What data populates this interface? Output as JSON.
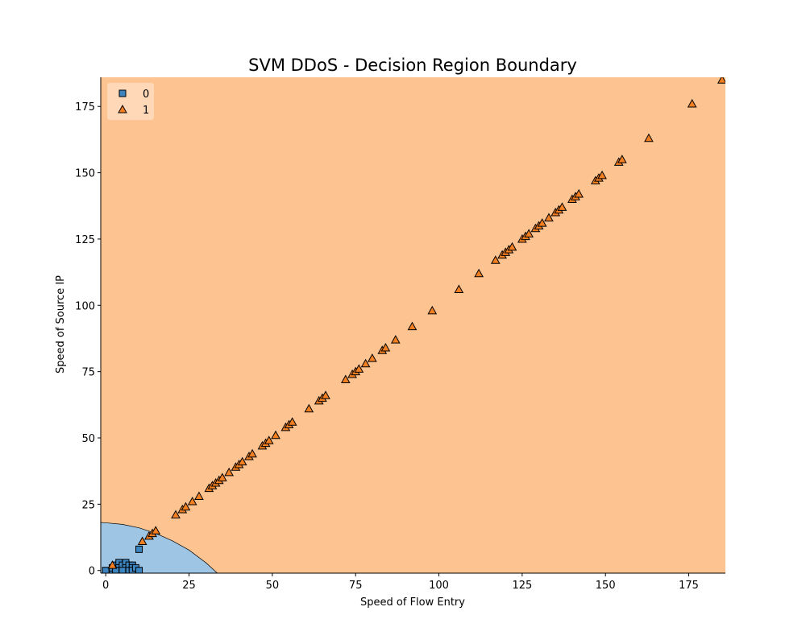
{
  "chart_data": {
    "type": "scatter",
    "title": "SVM DDoS - Decision Region Boundary",
    "xlabel": "Speed of Flow Entry",
    "ylabel": "Speed of Source IP",
    "xlim": [
      -1.5,
      186
    ],
    "ylim": [
      -1,
      186
    ],
    "xticks": [
      0,
      25,
      50,
      75,
      100,
      125,
      150,
      175
    ],
    "yticks": [
      0,
      25,
      50,
      75,
      100,
      125,
      150,
      175
    ],
    "legend_position": "top-left",
    "grid": false,
    "region_colors": {
      "0": "#9ec5e3",
      "1": "#fdc491"
    },
    "boundary_curve": [
      [
        -1.5,
        18.1
      ],
      [
        0,
        18.0
      ],
      [
        5,
        17.4
      ],
      [
        10,
        16.1
      ],
      [
        15,
        14.0
      ],
      [
        20,
        11.2
      ],
      [
        25,
        7.7
      ],
      [
        30,
        3.0
      ],
      [
        33.5,
        -1
      ]
    ],
    "series": [
      {
        "name": "0",
        "marker": "square",
        "color": "#3b84bf",
        "points": [
          [
            0,
            0
          ],
          [
            2,
            0
          ],
          [
            2,
            1
          ],
          [
            3,
            2
          ],
          [
            4,
            3
          ],
          [
            4,
            1
          ],
          [
            4,
            0
          ],
          [
            5,
            2
          ],
          [
            6,
            3
          ],
          [
            6,
            1
          ],
          [
            7,
            2
          ],
          [
            7,
            0
          ],
          [
            8,
            2
          ],
          [
            8,
            1
          ],
          [
            8,
            0
          ],
          [
            9,
            1
          ],
          [
            10,
            8
          ],
          [
            10,
            0
          ],
          [
            3,
            0
          ],
          [
            5,
            0
          ]
        ]
      },
      {
        "name": "1",
        "marker": "triangle",
        "color": "#f47f20",
        "points": [
          [
            2,
            2
          ],
          [
            11,
            11
          ],
          [
            13,
            13
          ],
          [
            14,
            14
          ],
          [
            15,
            15
          ],
          [
            21,
            21
          ],
          [
            23,
            23
          ],
          [
            24,
            24
          ],
          [
            26,
            26
          ],
          [
            28,
            28
          ],
          [
            31,
            31
          ],
          [
            32,
            32
          ],
          [
            33,
            33
          ],
          [
            34,
            34
          ],
          [
            35,
            35
          ],
          [
            37,
            37
          ],
          [
            39,
            39
          ],
          [
            40,
            40
          ],
          [
            41,
            41
          ],
          [
            43,
            43
          ],
          [
            44,
            44
          ],
          [
            47,
            47
          ],
          [
            48,
            48
          ],
          [
            49,
            49
          ],
          [
            51,
            51
          ],
          [
            54,
            54
          ],
          [
            55,
            55
          ],
          [
            56,
            56
          ],
          [
            61,
            61
          ],
          [
            64,
            64
          ],
          [
            65,
            65
          ],
          [
            66,
            66
          ],
          [
            72,
            72
          ],
          [
            74,
            74
          ],
          [
            75,
            75
          ],
          [
            76,
            76
          ],
          [
            78,
            78
          ],
          [
            80,
            80
          ],
          [
            83,
            83
          ],
          [
            84,
            84
          ],
          [
            87,
            87
          ],
          [
            92,
            92
          ],
          [
            98,
            98
          ],
          [
            106,
            106
          ],
          [
            112,
            112
          ],
          [
            117,
            117
          ],
          [
            119,
            119
          ],
          [
            120,
            120
          ],
          [
            121,
            121
          ],
          [
            122,
            122
          ],
          [
            125,
            125
          ],
          [
            126,
            126
          ],
          [
            127,
            127
          ],
          [
            129,
            129
          ],
          [
            130,
            130
          ],
          [
            131,
            131
          ],
          [
            133,
            133
          ],
          [
            135,
            135
          ],
          [
            136,
            136
          ],
          [
            137,
            137
          ],
          [
            140,
            140
          ],
          [
            141,
            141
          ],
          [
            142,
            142
          ],
          [
            147,
            147
          ],
          [
            148,
            148
          ],
          [
            149,
            149
          ],
          [
            154,
            154
          ],
          [
            155,
            155
          ],
          [
            163,
            163
          ],
          [
            176,
            176
          ],
          [
            185,
            185
          ]
        ]
      }
    ]
  }
}
